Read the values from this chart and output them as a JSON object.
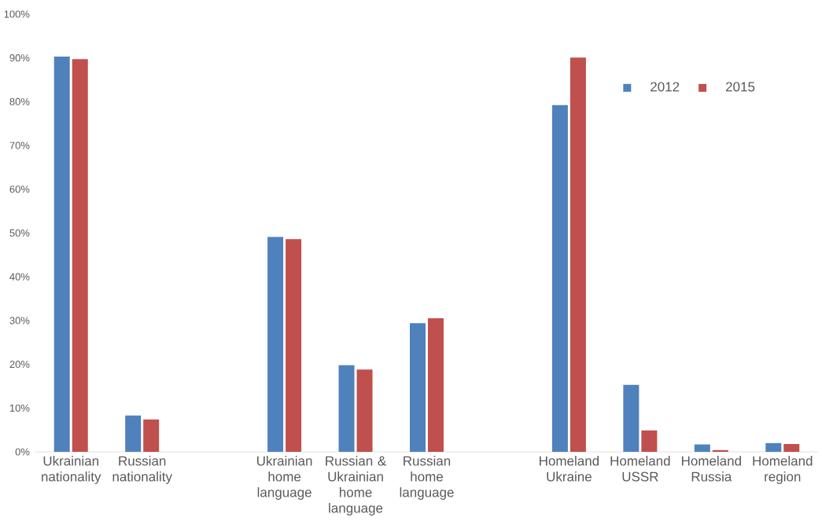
{
  "chart_data": {
    "type": "bar",
    "categories": [
      "Ukrainian nationality",
      "Russian nationality",
      null,
      "Ukrainian home language",
      "Russian & Ukrainian home language",
      "Russian home language",
      null,
      "Homeland Ukraine",
      "Homeland USSR",
      "Homeland Russia",
      "Homeland region"
    ],
    "series": [
      {
        "name": "2012",
        "color": "#4f81bd",
        "values": [
          90.3,
          8.3,
          null,
          49.1,
          19.8,
          29.4,
          null,
          79.2,
          15.3,
          1.7,
          2.0
        ]
      },
      {
        "name": "2015",
        "color": "#c0504d",
        "values": [
          89.7,
          7.4,
          null,
          48.6,
          18.8,
          30.5,
          null,
          90.1,
          4.9,
          0.4,
          1.8
        ]
      }
    ],
    "ylim": [
      0,
      100
    ],
    "yticks": [
      {
        "value": 0,
        "label": "0%"
      },
      {
        "value": 10,
        "label": "10%"
      },
      {
        "value": 20,
        "label": "20%"
      },
      {
        "value": 30,
        "label": "30%"
      },
      {
        "value": 40,
        "label": "40%"
      },
      {
        "value": 50,
        "label": "50%"
      },
      {
        "value": 60,
        "label": "60%"
      },
      {
        "value": 70,
        "label": "70%"
      },
      {
        "value": 80,
        "label": "80%"
      },
      {
        "value": 90,
        "label": "90%"
      },
      {
        "value": 100,
        "label": "100%"
      }
    ],
    "grid": false,
    "legend": "top right"
  }
}
